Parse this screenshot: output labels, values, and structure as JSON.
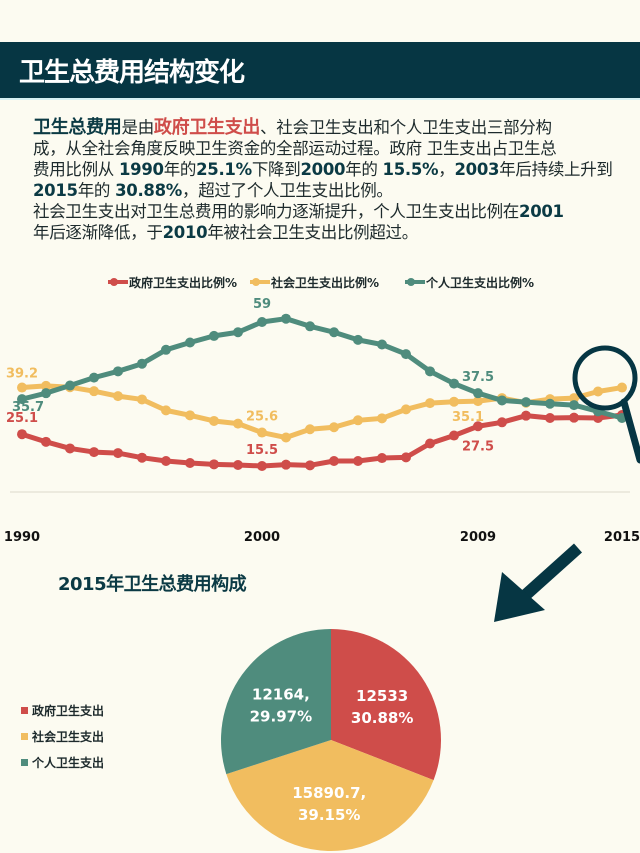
{
  "header": {
    "title": "卫生总费用结构变化"
  },
  "intro": {
    "lines": [
      [
        {
          "t": "卫生总费用",
          "s": "bt"
        },
        {
          "t": "是由",
          "s": ""
        },
        {
          "t": "政府卫生支出",
          "s": "r"
        },
        {
          "t": "、社会卫生支出和个人卫生支出三部分构",
          "s": ""
        }
      ],
      [
        {
          "t": "成，从全社会角度反映卫生资金的全部运动过程。政府 卫生支出占卫生总",
          "s": ""
        }
      ],
      [
        {
          "t": "费用比例从 ",
          "s": ""
        },
        {
          "t": "1990",
          "s": "b"
        },
        {
          "t": "年的",
          "s": ""
        },
        {
          "t": "25.1%",
          "s": "b"
        },
        {
          "t": "下降到",
          "s": ""
        },
        {
          "t": "2000",
          "s": "b"
        },
        {
          "t": "年的 ",
          "s": ""
        },
        {
          "t": "15.5%",
          "s": "b"
        },
        {
          "t": "，",
          "s": ""
        },
        {
          "t": "2003",
          "s": "b"
        },
        {
          "t": "年后持续上升到",
          "s": ""
        }
      ],
      [
        {
          "t": "2015",
          "s": "b"
        },
        {
          "t": "年的 ",
          "s": ""
        },
        {
          "t": "30.88%",
          "s": "b"
        },
        {
          "t": "，超过了个人卫生支出比例。",
          "s": ""
        }
      ],
      [
        {
          "t": "社会卫生支出对卫生总费用的影响力逐渐提升，个人卫生支出比例在",
          "s": ""
        },
        {
          "t": "2001",
          "s": "b"
        }
      ],
      [
        {
          "t": "年后逐渐降低，于",
          "s": ""
        },
        {
          "t": "2010",
          "s": "b"
        },
        {
          "t": "年被社会卫生支出比例超过。",
          "s": ""
        }
      ]
    ]
  },
  "colors": {
    "gov": "#cf4d4a",
    "social": "#f1bd5f",
    "personal": "#4f8c7d",
    "dark": "#063643"
  },
  "chart_data": [
    {
      "type": "line",
      "title": "",
      "x": [
        1990,
        1991,
        1992,
        1993,
        1994,
        1995,
        1996,
        1997,
        1998,
        1999,
        2000,
        2001,
        2002,
        2003,
        2004,
        2005,
        2006,
        2007,
        2008,
        2009,
        2010,
        2011,
        2012,
        2013,
        2014,
        2015
      ],
      "xticks": [
        "1990",
        "2000",
        "2009",
        "2015"
      ],
      "ylim": [
        10,
        65
      ],
      "legend_position": "top-center",
      "series": [
        {
          "key": "gov",
          "name": "政府卫生支出比例%",
          "values": [
            25.1,
            22.8,
            20.8,
            19.7,
            19.4,
            18.0,
            17.0,
            16.4,
            16.0,
            15.8,
            15.5,
            15.9,
            15.7,
            17.0,
            17.0,
            17.9,
            18.1,
            22.3,
            24.7,
            27.5,
            28.7,
            30.7,
            30.0,
            30.1,
            30.0,
            30.9
          ]
        },
        {
          "key": "social",
          "name": "社会卫生支出比例%",
          "values": [
            39.2,
            39.7,
            39.3,
            38.1,
            36.6,
            35.6,
            32.3,
            30.8,
            29.1,
            28.3,
            25.6,
            24.1,
            26.6,
            27.2,
            29.3,
            29.9,
            32.6,
            34.5,
            34.9,
            35.1,
            36.0,
            34.6,
            35.7,
            36.0,
            38.0,
            39.2
          ]
        },
        {
          "key": "personal",
          "name": "个人卫生支出比例%",
          "values": [
            35.7,
            37.5,
            39.8,
            42.2,
            44.1,
            46.4,
            50.6,
            52.8,
            54.8,
            55.9,
            59.0,
            60.0,
            57.7,
            55.9,
            53.6,
            52.2,
            49.3,
            44.1,
            40.4,
            37.5,
            35.3,
            34.8,
            34.3,
            33.9,
            32.0,
            30.0
          ]
        }
      ],
      "annotations": [
        {
          "series": "gov",
          "x": 1990,
          "label": "25.1"
        },
        {
          "series": "gov",
          "x": 2000,
          "label": "15.5"
        },
        {
          "series": "gov",
          "x": 2009,
          "label": "27.5"
        },
        {
          "series": "social",
          "x": 1990,
          "label": "39.2"
        },
        {
          "series": "social",
          "x": 2000,
          "label": "25.6"
        },
        {
          "series": "social",
          "x": 2009,
          "label": "35.1"
        },
        {
          "series": "personal",
          "x": 1990,
          "label": "35.7"
        },
        {
          "series": "personal",
          "x": 2000,
          "label": "59"
        },
        {
          "series": "personal",
          "x": 2009,
          "label": "37.5"
        }
      ]
    },
    {
      "type": "pie",
      "title": "2015年卫生总费用构成",
      "slices": [
        {
          "key": "gov",
          "name": "政府卫生支出",
          "value": 12533,
          "percent": 30.88,
          "label1": "12533",
          "label2": "30.88%"
        },
        {
          "key": "social",
          "name": "社会卫生支出",
          "value": 15890.7,
          "percent": 39.15,
          "label1": "15890.7,",
          "label2": "39.15%"
        },
        {
          "key": "personal",
          "name": "个人卫生支出",
          "value": 12164,
          "percent": 29.97,
          "label1": "12164,",
          "label2": "29.97%"
        }
      ],
      "legend_position": "left"
    }
  ]
}
